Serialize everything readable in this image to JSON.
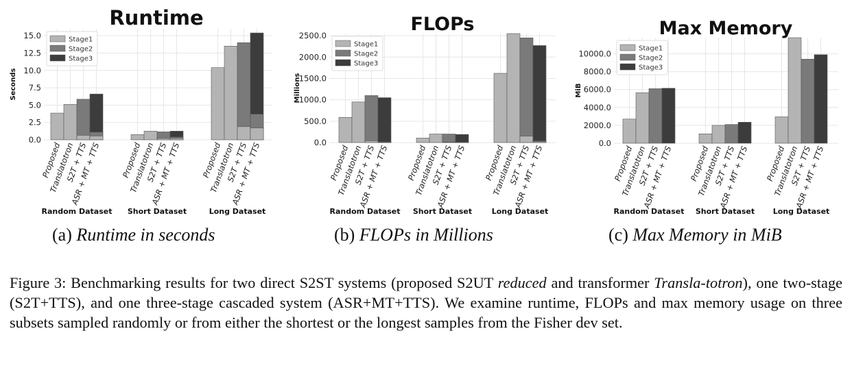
{
  "chart_data": [
    {
      "type": "bar",
      "title": "Runtime",
      "ylabel": "Seconds",
      "ylim": [
        0,
        16
      ],
      "yticks": [
        "0.0",
        "2.5",
        "5.0",
        "7.5",
        "10.0",
        "12.5",
        "15.0"
      ],
      "groups": [
        "Random Dataset",
        "Short Dataset",
        "Long Dataset"
      ],
      "systems": [
        "Proposed",
        "Translatotron",
        "S2T + TTS",
        "ASR + MT + TTS"
      ],
      "stacked": true,
      "series_names": [
        "Stage1",
        "Stage2",
        "Stage3"
      ],
      "values": [
        [
          [
            3.85
          ],
          [
            5.1
          ],
          [
            0.65,
            5.2
          ],
          [
            0.55,
            0.55,
            5.5
          ]
        ],
        [
          [
            0.75
          ],
          [
            1.25
          ],
          [
            0.2,
            0.95
          ],
          [
            0.2,
            0.2,
            0.85
          ]
        ],
        [
          [
            10.4
          ],
          [
            13.5
          ],
          [
            1.9,
            12.1
          ],
          [
            1.7,
            2.0,
            11.7
          ]
        ]
      ],
      "legend": "top-left",
      "grid": true
    },
    {
      "type": "bar",
      "title": "FLOPs",
      "ylabel": "Millions",
      "ylim": [
        0,
        2550
      ],
      "yticks": [
        "0.0",
        "500.0",
        "1000.0",
        "1500.0",
        "2000.0",
        "2500.0"
      ],
      "groups": [
        "Random Dataset",
        "Short Dataset",
        "Long Dataset"
      ],
      "systems": [
        "Proposed",
        "Translatotron",
        "S2T + TTS",
        "ASR + MT + TTS"
      ],
      "stacked": true,
      "series_names": [
        "Stage1",
        "Stage2",
        "Stage3"
      ],
      "values": [
        [
          [
            590
          ],
          [
            950
          ],
          [
            40,
            1060
          ],
          [
            10,
            10,
            1030
          ]
        ],
        [
          [
            105
          ],
          [
            200
          ],
          [
            10,
            190
          ],
          [
            5,
            5,
            180
          ]
        ],
        [
          [
            1620
          ],
          [
            2550
          ],
          [
            150,
            2300
          ],
          [
            20,
            20,
            2230
          ]
        ]
      ],
      "legend": "top-left",
      "grid": true
    },
    {
      "type": "bar",
      "title": "Max Memory",
      "ylabel": "MiB",
      "ylim": [
        0,
        11800
      ],
      "yticks": [
        "0.0",
        "2000.0",
        "4000.0",
        "6000.0",
        "8000.0",
        "10000.0"
      ],
      "groups": [
        "Random Dataset",
        "Short Dataset",
        "Long Dataset"
      ],
      "systems": [
        "Proposed",
        "Translatotron",
        "S2T + TTS",
        "ASR + MT + TTS"
      ],
      "stacked": false,
      "series_names": [
        "Stage1",
        "Stage2",
        "Stage3"
      ],
      "values": [
        [
          [
            2700
          ],
          [
            5650
          ],
          [
            0,
            6100
          ],
          [
            0,
            0,
            6150
          ]
        ],
        [
          [
            1050
          ],
          [
            2000
          ],
          [
            0,
            2100
          ],
          [
            0,
            0,
            2350
          ]
        ],
        [
          [
            2950
          ],
          [
            11800
          ],
          [
            0,
            9400
          ],
          [
            0,
            0,
            9900
          ]
        ]
      ],
      "legend": "top-left",
      "grid": true
    }
  ],
  "colors": {
    "stage1": "#b4b4b4",
    "stage2": "#7a7a7a",
    "stage3": "#3c3c3c",
    "grid": "#e6e6e6"
  },
  "captions": {
    "a_letter": "(a)",
    "a_text": "Runtime in seconds",
    "b_letter": "(b)",
    "b_text": "FLOPs in Millions",
    "c_letter": "(c)",
    "c_text": "Max Memory in MiB"
  },
  "figure_caption": {
    "p1": "Figure 3: Benchmarking results for two direct S2ST systems (proposed S2UT ",
    "em1": "reduced",
    "p2": " and transformer ",
    "em2": "Transla-totron",
    "p3": "), one two-stage (S2T+TTS), and one three-stage cascaded system (ASR+MT+TTS). We examine runtime, FLOPs and max memory usage on three subsets sampled randomly or from either the shortest or the longest samples from the Fisher dev set."
  }
}
